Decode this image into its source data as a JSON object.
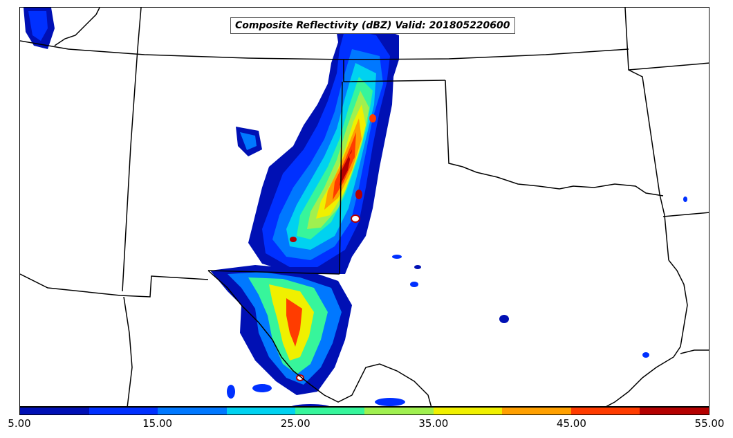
{
  "title": "Composite Reflectivity (dBZ) Valid: 201805220600",
  "colorbar": {
    "ticks": [
      "5.00",
      "15.00",
      "25.00",
      "35.00",
      "45.00",
      "55.00"
    ],
    "colors": [
      "#0010b4",
      "#0030ff",
      "#0078ff",
      "#00d2f0",
      "#37f59b",
      "#a0f050",
      "#f0f000",
      "#ffa000",
      "#ff3c00",
      "#b40000"
    ]
  },
  "map": {
    "border_color": "#000000",
    "background": "#ffffff"
  }
}
